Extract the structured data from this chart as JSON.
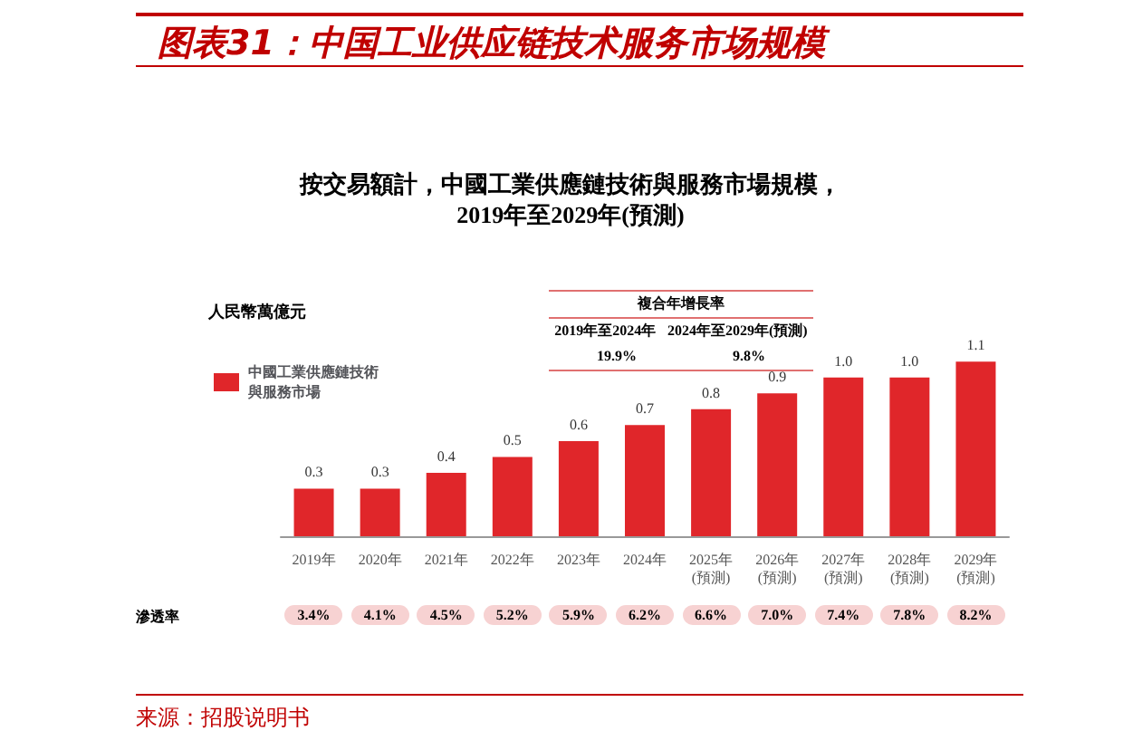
{
  "chart_data": {
    "type": "bar",
    "title": "图表31：中国工业供应链技术服务市场规模",
    "subtitle": "按交易額計，中國工業供應鏈技術與服務市場規模，\n2019年至2029年(預測)",
    "ylabel": "人民幣萬億元",
    "categories": [
      "2019年",
      "2020年",
      "2021年",
      "2022年",
      "2023年",
      "2024年",
      "2025年\n(預測)",
      "2026年\n(預測)",
      "2027年\n(預測)",
      "2028年\n(預測)",
      "2029年\n(預測)"
    ],
    "series": [
      {
        "name": "中國工業供應鏈技術與服務市場",
        "color": "#e0262a",
        "values": [
          0.3,
          0.3,
          0.4,
          0.5,
          0.6,
          0.7,
          0.8,
          0.9,
          1.0,
          1.0,
          1.1
        ],
        "value_labels": [
          "0.3",
          "0.3",
          "0.4",
          "0.5",
          "0.6",
          "0.7",
          "0.8",
          "0.9",
          "1.0",
          "1.0",
          "1.1"
        ]
      }
    ],
    "legend": "top left",
    "annotations": [
      "滲透率",
      "3.4%",
      "4.1%",
      "4.5%",
      "5.2%",
      "5.9%",
      "6.2%",
      "6.6%",
      "7.0%",
      "7.4%",
      "7.8%",
      "8.2%",
      "複合年增長率",
      "2019年至2024年",
      "2024年至2029年(預測)",
      "19.9%",
      "9.8%",
      "来源：招股说明书"
    ]
  }
}
